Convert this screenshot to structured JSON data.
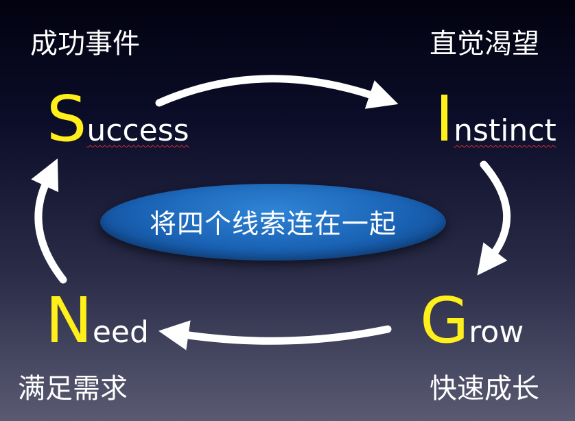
{
  "quadrants": {
    "success": {
      "cn": "成功事件",
      "initial": "S",
      "rest": "uccess"
    },
    "instinct": {
      "cn": "直觉渴望",
      "initial": "I",
      "rest": "nstinct"
    },
    "grow": {
      "cn": "快速成长",
      "initial": "G",
      "rest": "row"
    },
    "need": {
      "cn": "满足需求",
      "initial": "N",
      "rest": "eed"
    }
  },
  "center": {
    "label": "将四个线索连在一起"
  },
  "colors": {
    "initial_letter": "#ffef1a",
    "oval": "#1a62b4",
    "arrow": "#ffffff"
  }
}
